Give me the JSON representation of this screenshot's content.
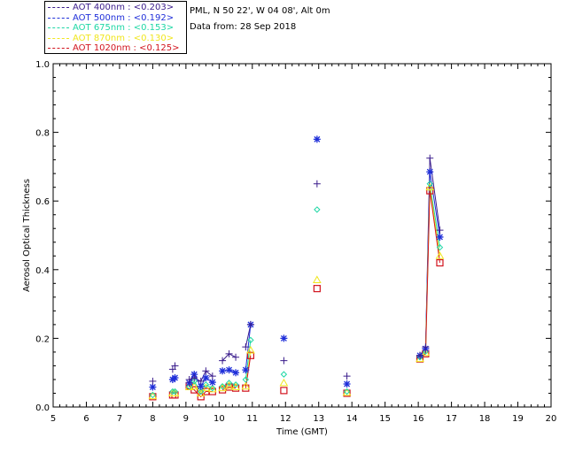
{
  "header": {
    "station": "PML, N 50 22', W 04 08', Alt 0m",
    "date_line": "Data from: 28 Sep 2018"
  },
  "legend": [
    {
      "label": "AOT  400nm : <0.203>",
      "color": "#3a1c8c"
    },
    {
      "label": "AOT  500nm : <0.192>",
      "color": "#1f2fd9"
    },
    {
      "label": "AOT  675nm : <0.153>",
      "color": "#1ed7a5"
    },
    {
      "label": "AOT  870nm : <0.130>",
      "color": "#f0e61e"
    },
    {
      "label": "AOT 1020nm : <0.125>",
      "color": "#d2141e"
    }
  ],
  "chart_data": {
    "type": "scatter",
    "title": "",
    "xlabel": "Time (GMT)",
    "ylabel": "Aerosol Optical Thickness",
    "xlim": [
      5,
      20
    ],
    "ylim": [
      0,
      1.0
    ],
    "xticks": [
      5,
      6,
      7,
      8,
      9,
      10,
      11,
      12,
      13,
      14,
      15,
      16,
      17,
      18,
      19,
      20
    ],
    "yticks": [
      "0.0",
      "0.2",
      "0.4",
      "0.6",
      "0.8",
      "1.0"
    ],
    "x": [
      8.0,
      8.6,
      8.67,
      9.1,
      9.25,
      9.45,
      9.6,
      9.8,
      10.1,
      10.3,
      10.5,
      10.8,
      10.95,
      11.95,
      12.95,
      13.85,
      16.05,
      16.22,
      16.35,
      16.65
    ],
    "series": [
      {
        "name": "AOT 400nm",
        "marker": "plus",
        "color": "#3a1c8c",
        "values": [
          0.075,
          0.11,
          0.12,
          0.08,
          0.085,
          0.075,
          0.105,
          0.09,
          0.135,
          0.155,
          0.145,
          0.175,
          0.24,
          0.135,
          0.65,
          0.09,
          0.15,
          0.175,
          0.725,
          0.515
        ]
      },
      {
        "name": "AOT 500nm",
        "marker": "asterisk",
        "color": "#1f2fd9",
        "values": [
          0.058,
          0.08,
          0.085,
          0.07,
          0.095,
          0.06,
          0.085,
          0.072,
          0.105,
          0.108,
          0.1,
          0.108,
          0.24,
          0.2,
          0.78,
          0.067,
          0.15,
          0.17,
          0.685,
          0.495
        ]
      },
      {
        "name": "AOT 675nm",
        "marker": "diamond",
        "color": "#1ed7a5",
        "values": [
          0.035,
          0.045,
          0.045,
          0.06,
          0.075,
          0.045,
          0.065,
          0.055,
          0.06,
          0.07,
          0.065,
          0.08,
          0.195,
          0.095,
          0.575,
          0.045,
          0.145,
          0.162,
          0.65,
          0.465
        ]
      },
      {
        "name": "AOT 870nm",
        "marker": "triangle",
        "color": "#f0e61e",
        "values": [
          0.032,
          0.04,
          0.04,
          0.058,
          0.06,
          0.04,
          0.055,
          0.052,
          0.055,
          0.062,
          0.058,
          0.06,
          0.165,
          0.07,
          0.37,
          0.042,
          0.14,
          0.158,
          0.64,
          0.44
        ]
      },
      {
        "name": "AOT 1020nm",
        "marker": "square",
        "color": "#d2141e",
        "values": [
          0.03,
          0.035,
          0.035,
          0.062,
          0.05,
          0.03,
          0.045,
          0.045,
          0.05,
          0.058,
          0.055,
          0.055,
          0.15,
          0.048,
          0.345,
          0.04,
          0.14,
          0.155,
          0.63,
          0.42
        ]
      }
    ],
    "connected_segments": [
      [
        9.1,
        9.25,
        9.45,
        9.6,
        9.8
      ],
      [
        10.1,
        10.3,
        10.5
      ],
      [
        10.8,
        10.95
      ],
      [
        16.05,
        16.22,
        16.35,
        16.65
      ]
    ]
  }
}
